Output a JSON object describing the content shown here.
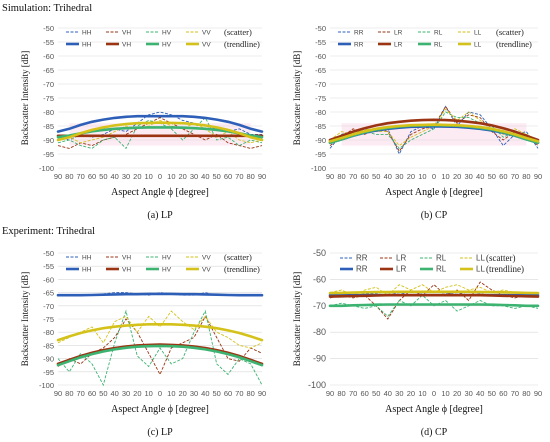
{
  "sections": {
    "simulation_title": "Simulation: Trihedral",
    "experiment_title": "Experiment: Trihedral"
  },
  "colors": {
    "HH": "#2e5fb8",
    "VH": "#9a3412",
    "HV": "#3cb371",
    "VV": "#d4c21a",
    "RR": "#2e5fb8",
    "LR": "#9a3412",
    "RL": "#3cb371",
    "LL": "#d4c21a",
    "band": "#f7c6de"
  },
  "chart_data": [
    {
      "id": "a",
      "type": "line",
      "caption": "(a) LP",
      "xlabel": "Aspect Angle ϕ [degree]",
      "ylabel": "Backscatter Intensity [dB]",
      "x_ticks": [
        "90",
        "80",
        "70",
        "60",
        "50",
        "40",
        "30",
        "20",
        "10",
        "0",
        "10",
        "20",
        "30",
        "40",
        "50",
        "60",
        "70",
        "80",
        "90"
      ],
      "ylim": [
        -100,
        -50
      ],
      "y_ticks": [
        -100,
        -95,
        -90,
        -85,
        -80,
        -75,
        -70,
        -65,
        -60,
        -55,
        -50
      ],
      "y_tick_labels": [
        "-100",
        "-95",
        "-90",
        "-85",
        "-80",
        "-75",
        "-70",
        "-65",
        "-60",
        "-55",
        "-50"
      ],
      "grid": true,
      "legend": {
        "scatter_note": "(scatter)",
        "trend_note": "(trendline)",
        "placement": "top"
      },
      "scatter": [
        {
          "name": "HH",
          "values": [
            -89,
            -90,
            -88,
            -89,
            -88,
            -86,
            -87,
            -84,
            -81,
            -80,
            -81,
            -83,
            -84,
            -85,
            -86,
            -87,
            -86,
            -88,
            -88
          ]
        },
        {
          "name": "VH",
          "values": [
            -92,
            -93,
            -91,
            -92,
            -90,
            -89,
            -88,
            -86,
            -84,
            -82,
            -84,
            -86,
            -88,
            -90,
            -88,
            -91,
            -92,
            -93,
            -92
          ]
        },
        {
          "name": "HV",
          "values": [
            -91,
            -90,
            -92,
            -93,
            -90,
            -89,
            -93,
            -85,
            -83,
            -84,
            -86,
            -90,
            -86,
            -82,
            -90,
            -89,
            -92,
            -90,
            -91
          ]
        },
        {
          "name": "VV",
          "values": [
            -90,
            -89,
            -91,
            -90,
            -89,
            -87,
            -85,
            -86,
            -85,
            -83,
            -85,
            -86,
            -84,
            -86,
            -89,
            -87,
            -90,
            -91,
            -90
          ]
        }
      ],
      "trend": [
        {
          "name": "HH",
          "values": [
            -87,
            -86,
            -84.6,
            -83.5,
            -82.7,
            -82.1,
            -81.7,
            -81.5,
            -81.5,
            -81.5,
            -81.5,
            -81.5,
            -81.7,
            -82.1,
            -82.7,
            -83.5,
            -84.6,
            -86,
            -87
          ]
        },
        {
          "name": "VH",
          "values": [
            -88.5,
            -88.5,
            -88.5,
            -88.5,
            -88.5,
            -88.5,
            -88.5,
            -88.5,
            -88.5,
            -88.5,
            -88.5,
            -88.5,
            -88.5,
            -88.5,
            -88.5,
            -88.5,
            -88.5,
            -88.5,
            -88.5
          ]
        },
        {
          "name": "HV",
          "values": [
            -89,
            -88.4,
            -87.6,
            -86.9,
            -86.4,
            -86,
            -85.8,
            -85.6,
            -85.5,
            -85.5,
            -85.5,
            -85.6,
            -85.8,
            -86,
            -86.4,
            -86.9,
            -87.6,
            -88.4,
            -89
          ]
        },
        {
          "name": "VV",
          "values": [
            -90,
            -89,
            -87.6,
            -86.4,
            -85.5,
            -84.8,
            -84.3,
            -84,
            -83.9,
            -83.8,
            -83.9,
            -84,
            -84.3,
            -84.8,
            -85.5,
            -86.4,
            -87.6,
            -89,
            -90
          ]
        }
      ]
    },
    {
      "id": "b",
      "type": "line",
      "caption": "(b)  CP",
      "xlabel": "Aspect Angle ϕ [degree]",
      "ylabel": "Backscatter Intensity [dB]",
      "x_ticks": [
        "90",
        "80",
        "70",
        "60",
        "50",
        "40",
        "30",
        "20",
        "10",
        "0",
        "10",
        "20",
        "30",
        "40",
        "50",
        "60",
        "70",
        "80",
        "90"
      ],
      "ylim": [
        -100,
        -50
      ],
      "y_ticks": [
        -100,
        -95,
        -90,
        -85,
        -80,
        -75,
        -70,
        -65,
        -60,
        -55,
        -50
      ],
      "y_tick_labels": [
        "-100",
        "-95",
        "-90",
        "-85",
        "-80",
        "-75",
        "-70",
        "-65",
        "-60",
        "-55",
        "-50"
      ],
      "grid": true,
      "legend": {
        "scatter_note": "(scatter)",
        "trend_note": "(trendline)",
        "placement": "top"
      },
      "scatter": [
        {
          "name": "RR",
          "values": [
            -93,
            -88,
            -87,
            -86,
            -87,
            -86,
            -95,
            -87,
            -85,
            -86,
            -78,
            -85,
            -80,
            -81,
            -86,
            -92,
            -88,
            -87,
            -93
          ]
        },
        {
          "name": "LR",
          "values": [
            -92,
            -89,
            -86,
            -88,
            -86,
            -87,
            -94,
            -88,
            -86,
            -85,
            -78,
            -84,
            -81,
            -82,
            -87,
            -90,
            -87,
            -88,
            -92
          ]
        },
        {
          "name": "RL",
          "values": [
            -91,
            -88,
            -87,
            -87,
            -88,
            -88,
            -93,
            -90,
            -88,
            -86,
            -80,
            -82,
            -82,
            -84,
            -85,
            -89,
            -87,
            -89,
            -91
          ]
        },
        {
          "name": "LL",
          "values": [
            -90,
            -87,
            -88,
            -86,
            -87,
            -87,
            -92,
            -89,
            -87,
            -85,
            -79,
            -83,
            -80,
            -83,
            -86,
            -88,
            -86,
            -88,
            -90
          ]
        }
      ],
      "trend": [
        {
          "name": "RR",
          "values": [
            -91,
            -89.8,
            -88.5,
            -87.4,
            -86.6,
            -86,
            -85.6,
            -85.3,
            -85.2,
            -85.1,
            -85.2,
            -85.3,
            -85.6,
            -86,
            -86.6,
            -87.4,
            -88.5,
            -89.8,
            -91
          ]
        },
        {
          "name": "LR",
          "values": [
            -90,
            -88.5,
            -87,
            -85.8,
            -84.8,
            -84,
            -83.5,
            -83.1,
            -82.9,
            -82.8,
            -82.9,
            -83.1,
            -83.5,
            -84,
            -84.8,
            -85.8,
            -87,
            -88.5,
            -90
          ]
        },
        {
          "name": "RL",
          "values": [
            -91,
            -89.8,
            -88.4,
            -87.2,
            -86.3,
            -85.7,
            -85.2,
            -84.9,
            -84.8,
            -84.7,
            -84.8,
            -84.9,
            -85.2,
            -85.7,
            -86.3,
            -87.2,
            -88.4,
            -89.8,
            -91
          ]
        },
        {
          "name": "LL",
          "values": [
            -90.5,
            -89.3,
            -88,
            -86.9,
            -86,
            -85.4,
            -85,
            -84.7,
            -84.6,
            -84.5,
            -84.6,
            -84.7,
            -85,
            -85.4,
            -86,
            -86.9,
            -88,
            -89.3,
            -90.5
          ]
        }
      ]
    },
    {
      "id": "c",
      "type": "line",
      "caption": "(c) LP",
      "xlabel": "Aspect Angle ϕ [degree]",
      "ylabel": "Backscatter Intensity [dB]",
      "x_ticks": [
        "90",
        "80",
        "70",
        "60",
        "50",
        "40",
        "30",
        "20",
        "10",
        "0",
        "10",
        "20",
        "30",
        "40",
        "50",
        "60",
        "70",
        "80",
        "90"
      ],
      "ylim": [
        -100,
        -50
      ],
      "y_ticks": [
        -100,
        -95,
        -90,
        -85,
        -80,
        -75,
        -70,
        -65,
        -60,
        -55,
        -50
      ],
      "y_tick_labels": [
        "-100",
        "-95",
        "-90",
        "-85",
        "-80",
        "-75",
        "-70",
        "-65",
        "-60",
        "-55",
        "-50"
      ],
      "grid": true,
      "legend": {
        "scatter_note": "(scatter)",
        "trend_note": "(trendline)",
        "placement": "top"
      },
      "scatter": [
        {
          "name": "HH",
          "values": [
            -66,
            -66,
            -66,
            -66,
            -65.5,
            -65,
            -65,
            -65.5,
            -66,
            -65,
            -65.5,
            -66,
            -66,
            -65,
            -66,
            -66,
            -66,
            -66,
            -66
          ]
        },
        {
          "name": "VH",
          "values": [
            -93,
            -90,
            -92,
            -88,
            -86,
            -82,
            -75,
            -80,
            -88,
            -96,
            -86,
            -84,
            -82,
            -74,
            -82,
            -90,
            -91,
            -86,
            -88
          ]
        },
        {
          "name": "HV",
          "values": [
            -90,
            -95,
            -88,
            -92,
            -100,
            -84,
            -72,
            -89,
            -93,
            -86,
            -92,
            -90,
            -80,
            -72,
            -92,
            -96,
            -90,
            -92,
            -100
          ]
        },
        {
          "name": "VV",
          "values": [
            -84,
            -82,
            -80,
            -78,
            -84,
            -76,
            -74,
            -80,
            -74,
            -78,
            -72,
            -76,
            -79,
            -74,
            -80,
            -82,
            -85,
            -86,
            -84
          ]
        }
      ],
      "trend": [
        {
          "name": "HH",
          "values": [
            -66,
            -66,
            -66,
            -65.9,
            -65.8,
            -65.7,
            -65.6,
            -65.6,
            -65.5,
            -65.5,
            -65.5,
            -65.6,
            -65.6,
            -65.7,
            -65.8,
            -65.9,
            -66,
            -66,
            -66
          ]
        },
        {
          "name": "VH",
          "values": [
            -92,
            -90.5,
            -89,
            -87.8,
            -86.8,
            -86,
            -85.4,
            -85,
            -84.8,
            -84.7,
            -84.8,
            -85,
            -85.4,
            -86,
            -86.8,
            -87.8,
            -89,
            -90.5,
            -92
          ]
        },
        {
          "name": "HV",
          "values": [
            -92.5,
            -91,
            -89.5,
            -88.3,
            -87.3,
            -86.5,
            -85.9,
            -85.5,
            -85.3,
            -85.2,
            -85.3,
            -85.5,
            -85.9,
            -86.5,
            -87.3,
            -88.3,
            -89.5,
            -91,
            -92.5
          ]
        },
        {
          "name": "VV",
          "values": [
            -83,
            -81.6,
            -80.3,
            -79.3,
            -78.5,
            -77.9,
            -77.5,
            -77.2,
            -77,
            -77,
            -77,
            -77.2,
            -77.5,
            -77.9,
            -78.5,
            -79.3,
            -80.3,
            -81.6,
            -83
          ]
        }
      ]
    },
    {
      "id": "d",
      "type": "line",
      "caption": "(d)  CP",
      "xlabel": "Aspect Angle ϕ [degree]",
      "ylabel": "Backscatter Intensity [dB]",
      "x_ticks": [
        "90",
        "80",
        "70",
        "60",
        "50",
        "40",
        "30",
        "20",
        "10",
        "0",
        "10",
        "20",
        "30",
        "40",
        "50",
        "60",
        "70",
        "80",
        "90"
      ],
      "ylim": [
        -100,
        -50
      ],
      "y_ticks": [
        -100,
        -90,
        -80,
        -70,
        -60,
        -50
      ],
      "y_tick_labels": [
        "-100",
        "-90",
        "-80",
        "-70",
        "-60",
        "-50"
      ],
      "grid": true,
      "legend": {
        "scatter_note": "(scatter)",
        "trend_note": "(trendline)",
        "placement": "top"
      },
      "scatter": [
        {
          "name": "RR",
          "values": [
            -66,
            -66,
            -66,
            -65.5,
            -65.5,
            -66,
            -65,
            -66,
            -65.5,
            -66,
            -65.5,
            -65,
            -66,
            -65.5,
            -66,
            -66,
            -66,
            -66,
            -66
          ]
        },
        {
          "name": "LR",
          "values": [
            -67,
            -66,
            -67,
            -66,
            -70,
            -75,
            -68,
            -64,
            -66,
            -62,
            -66,
            -64,
            -68,
            -61,
            -64,
            -66,
            -67,
            -66,
            -66
          ]
        },
        {
          "name": "RL",
          "values": [
            -70,
            -69,
            -70,
            -71,
            -70,
            -74,
            -68,
            -70,
            -66,
            -70,
            -68,
            -72,
            -70,
            -68,
            -70,
            -70,
            -71,
            -70,
            -71
          ]
        },
        {
          "name": "LL",
          "values": [
            -65,
            -64,
            -66,
            -64,
            -63,
            -66,
            -62,
            -64,
            -62,
            -65,
            -63,
            -62,
            -64,
            -63,
            -65,
            -64,
            -65,
            -65,
            -65
          ]
        }
      ],
      "trend": [
        {
          "name": "RR",
          "values": [
            -66,
            -66,
            -66,
            -66,
            -66,
            -66,
            -66,
            -66,
            -66,
            -66,
            -66,
            -66,
            -66,
            -66,
            -66,
            -66,
            -66,
            -66,
            -66
          ]
        },
        {
          "name": "LR",
          "values": [
            -66.5,
            -66.4,
            -66.3,
            -66.2,
            -66.1,
            -66,
            -66,
            -66,
            -66,
            -66,
            -66,
            -66,
            -66,
            -66,
            -66.1,
            -66.2,
            -66.3,
            -66.4,
            -66.5
          ]
        },
        {
          "name": "RL",
          "values": [
            -70,
            -70,
            -69.8,
            -69.7,
            -69.6,
            -69.5,
            -69.5,
            -69.5,
            -69.5,
            -69.5,
            -69.5,
            -69.5,
            -69.5,
            -69.5,
            -69.6,
            -69.7,
            -69.8,
            -70,
            -70
          ]
        },
        {
          "name": "LL",
          "values": [
            -65.2,
            -65.1,
            -65,
            -64.9,
            -64.8,
            -64.8,
            -64.7,
            -64.7,
            -64.7,
            -64.7,
            -64.7,
            -64.7,
            -64.7,
            -64.8,
            -64.8,
            -64.9,
            -65,
            -65.1,
            -65.2
          ]
        }
      ]
    }
  ]
}
